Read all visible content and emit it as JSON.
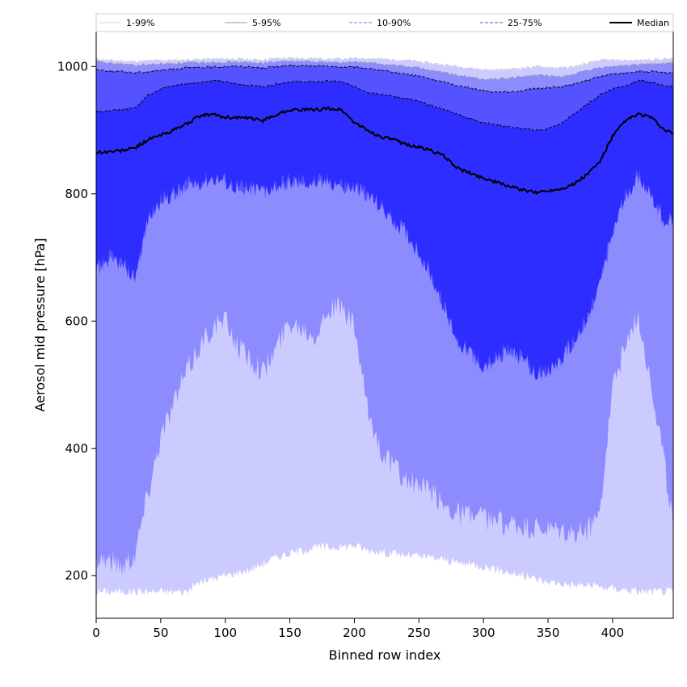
{
  "chart_data": {
    "type": "area",
    "xlabel": "Binned row index",
    "ylabel": "Aerosol mid pressure [hPa]",
    "xlim": [
      0,
      447
    ],
    "ylim": [
      1055,
      133
    ],
    "y_inverted": true,
    "xticks": [
      0,
      50,
      100,
      150,
      200,
      250,
      300,
      350,
      400
    ],
    "yticks": [
      1000,
      800,
      600,
      400,
      200
    ],
    "legend_position": "top (horizontal, above plot)",
    "grid": false,
    "x": [
      0,
      10,
      20,
      30,
      40,
      50,
      60,
      70,
      80,
      90,
      100,
      110,
      120,
      130,
      140,
      150,
      160,
      170,
      180,
      190,
      200,
      210,
      220,
      230,
      240,
      250,
      260,
      270,
      280,
      290,
      300,
      310,
      320,
      330,
      340,
      350,
      360,
      370,
      380,
      390,
      400,
      410,
      420,
      430,
      440,
      447
    ],
    "bands": [
      {
        "name": "1-99%",
        "color": "#cccbff",
        "line_color": "#d8d8d8",
        "line_style": "solid",
        "low": [
          175,
          175,
          175,
          175,
          175,
          175,
          175,
          175,
          190,
          195,
          200,
          205,
          210,
          220,
          230,
          235,
          240,
          245,
          245,
          245,
          248,
          240,
          238,
          235,
          232,
          230,
          228,
          225,
          220,
          218,
          215,
          210,
          205,
          200,
          195,
          190,
          188,
          185,
          185,
          182,
          180,
          178,
          175,
          175,
          175,
          175
        ],
        "high": [
          1012,
          1010,
          1009,
          1008,
          1009,
          1010,
          1010,
          1011,
          1011,
          1012,
          1012,
          1012,
          1011,
          1011,
          1013,
          1013,
          1013,
          1013,
          1012,
          1012,
          1013,
          1013,
          1012,
          1011,
          1010,
          1008,
          1005,
          1003,
          1000,
          998,
          995,
          995,
          996,
          998,
          1000,
          999,
          998,
          1000,
          1005,
          1010,
          1010,
          1010,
          1010,
          1011,
          1012,
          1012
        ]
      },
      {
        "name": "5-95%",
        "color": "#8d8cff",
        "line_color": "#999999",
        "line_style": "solid",
        "low": [
          230,
          225,
          215,
          235,
          330,
          420,
          470,
          520,
          560,
          590,
          600,
          560,
          540,
          520,
          560,
          600,
          590,
          580,
          620,
          620,
          590,
          460,
          400,
          370,
          350,
          340,
          330,
          310,
          300,
          295,
          290,
          285,
          280,
          275,
          272,
          270,
          268,
          265,
          270,
          300,
          500,
          560,
          610,
          500,
          380,
          270
        ],
        "high": [
          1008,
          1005,
          1004,
          1002,
          1003,
          1004,
          1005,
          1006,
          1006,
          1007,
          1007,
          1007,
          1006,
          1006,
          1008,
          1008,
          1008,
          1008,
          1007,
          1006,
          1007,
          1006,
          1004,
          1002,
          1000,
          998,
          994,
          990,
          986,
          983,
          980,
          980,
          982,
          984,
          986,
          985,
          984,
          988,
          993,
          998,
          1000,
          1002,
          1003,
          1004,
          1005,
          1005
        ]
      },
      {
        "name": "10-90%",
        "color": "#5453ff",
        "line_color": "#7777dd",
        "line_style": "dashed",
        "low": [
          680,
          700,
          690,
          670,
          760,
          790,
          800,
          815,
          820,
          825,
          820,
          810,
          808,
          805,
          815,
          820,
          820,
          818,
          820,
          815,
          810,
          800,
          780,
          760,
          740,
          710,
          670,
          620,
          570,
          550,
          530,
          540,
          560,
          540,
          520,
          520,
          540,
          570,
          600,
          660,
          740,
          800,
          830,
          800,
          760,
          755
        ],
        "high": [
          995,
          993,
          992,
          990,
          992,
          994,
          996,
          998,
          998,
          999,
          1000,
          1000,
          999,
          998,
          1000,
          1001,
          1001,
          1001,
          1000,
          999,
          999,
          997,
          994,
          991,
          988,
          985,
          980,
          975,
          970,
          966,
          962,
          960,
          960,
          962,
          965,
          967,
          968,
          972,
          978,
          984,
          988,
          990,
          992,
          992,
          990,
          990
        ]
      },
      {
        "name": "25-75%",
        "color": "#2e2dff",
        "line_color": "#5050ee",
        "line_style": "dashed",
        "low": [
          680,
          700,
          690,
          670,
          760,
          790,
          800,
          815,
          820,
          825,
          820,
          810,
          808,
          805,
          815,
          820,
          820,
          818,
          820,
          815,
          810,
          800,
          780,
          760,
          740,
          710,
          670,
          620,
          570,
          550,
          530,
          540,
          560,
          540,
          520,
          520,
          540,
          570,
          600,
          660,
          740,
          800,
          830,
          800,
          760,
          755
        ],
        "high": [
          930,
          930,
          932,
          935,
          955,
          965,
          970,
          973,
          975,
          978,
          976,
          972,
          970,
          968,
          973,
          976,
          976,
          976,
          977,
          976,
          968,
          960,
          957,
          953,
          950,
          945,
          938,
          932,
          925,
          918,
          912,
          908,
          905,
          902,
          900,
          902,
          910,
          925,
          940,
          955,
          965,
          970,
          978,
          975,
          970,
          968
        ]
      }
    ],
    "median": {
      "name": "Median",
      "color": "#000000",
      "values": [
        865,
        866,
        868,
        872,
        885,
        892,
        900,
        910,
        922,
        925,
        920,
        920,
        918,
        915,
        925,
        932,
        932,
        932,
        934,
        932,
        912,
        900,
        890,
        885,
        878,
        873,
        868,
        858,
        840,
        832,
        825,
        818,
        812,
        806,
        802,
        805,
        808,
        815,
        830,
        850,
        890,
        915,
        925,
        920,
        900,
        895
      ]
    }
  }
}
